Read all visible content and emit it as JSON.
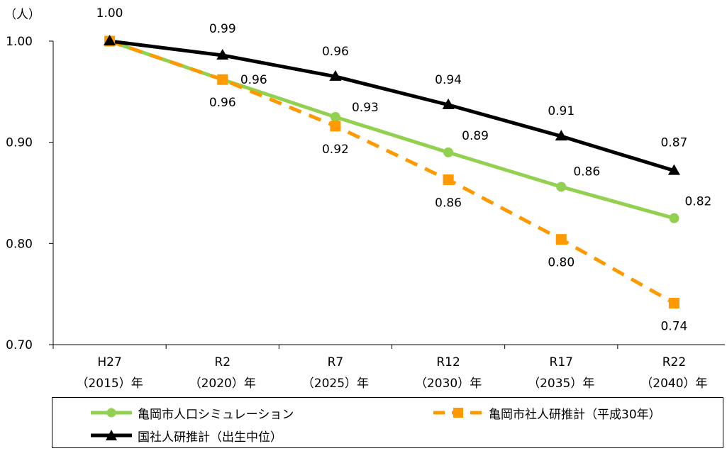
{
  "chart_data": {
    "type": "line",
    "unit_label": "（人）",
    "categories": [
      [
        "H27",
        "（2015）年"
      ],
      [
        "R2",
        "（2020）年"
      ],
      [
        "R7",
        "（2025）年"
      ],
      [
        "R12",
        "（2030）年"
      ],
      [
        "R17",
        "（2035）年"
      ],
      [
        "R22",
        "（2040）年"
      ]
    ],
    "ylim": [
      0.7,
      1.0
    ],
    "yticks": [
      "0.70",
      "0.80",
      "0.90",
      "1.00"
    ],
    "ytick_values": [
      0.7,
      0.8,
      0.9,
      1.0
    ],
    "series": [
      {
        "name": "亀岡市人口シミュレーション",
        "color": "#92d050",
        "line_style": "solid",
        "marker": "circle",
        "values": [
          1.0,
          0.962,
          0.925,
          0.89,
          0.856,
          0.825
        ],
        "labels": [
          "",
          "0.96",
          "0.93",
          "0.89",
          "0.86",
          "0.82"
        ]
      },
      {
        "name": "亀岡市社人研推計（平成30年）",
        "color": "#ff9900",
        "line_style": "dashed",
        "marker": "square",
        "values": [
          1.0,
          0.962,
          0.916,
          0.863,
          0.804,
          0.741
        ],
        "labels": [
          "",
          "0.96",
          "0.92",
          "0.86",
          "0.80",
          "0.74"
        ]
      },
      {
        "name": "国社人研推計（出生中位）",
        "color": "#000000",
        "line_style": "solid",
        "marker": "triangle",
        "values": [
          1.0,
          0.986,
          0.965,
          0.937,
          0.906,
          0.872
        ],
        "labels": [
          "1.00",
          "0.99",
          "0.96",
          "0.94",
          "0.91",
          "0.87"
        ]
      }
    ],
    "legend": "bottom",
    "grid": false
  }
}
